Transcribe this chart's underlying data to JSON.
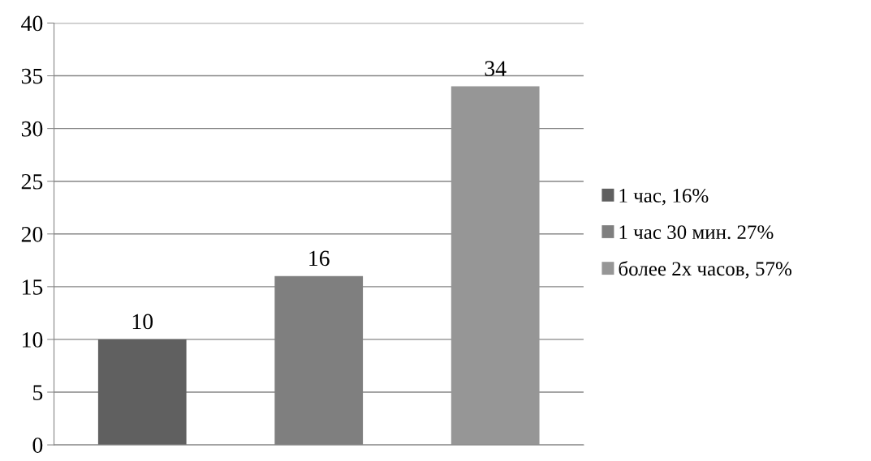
{
  "chart_data": {
    "type": "bar",
    "categories": [
      null,
      null,
      null
    ],
    "series": [
      {
        "name": "1 час, 16%",
        "color": "#606060",
        "values": [
          10,
          null,
          null
        ]
      },
      {
        "name": "1 час 30 мин. 27%",
        "color": "#7f7f7f",
        "values": [
          null,
          16,
          null
        ]
      },
      {
        "name": "более 2х часов, 57%",
        "color": "#969696",
        "values": [
          null,
          null,
          34
        ]
      }
    ],
    "ylim": [
      0,
      40
    ],
    "yticks": [
      0,
      5,
      10,
      15,
      20,
      25,
      30,
      35,
      40
    ],
    "grid": "y",
    "legend": "right",
    "data_labels": true
  }
}
